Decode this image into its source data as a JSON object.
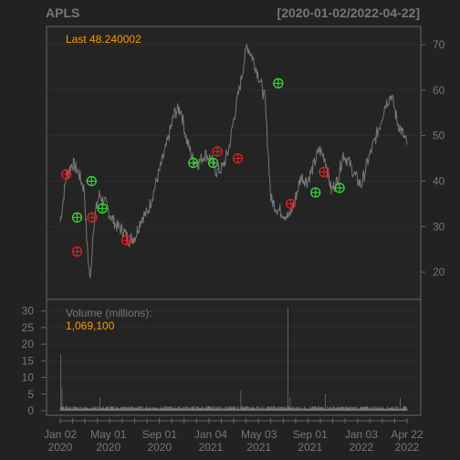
{
  "chart_data": {
    "type": "line",
    "title": "APLS",
    "date_range": "[2020-01-02/2022-04-22]",
    "price_panel": {
      "last_label": "Last 48.240002",
      "y_ticks": [
        20,
        30,
        40,
        50,
        60,
        70
      ],
      "ylim": [
        14,
        74
      ],
      "series": {
        "name": "",
        "x": [
          0,
          10,
          20,
          30,
          40,
          45,
          50,
          55,
          60,
          65,
          75,
          85,
          95,
          105,
          115,
          125,
          135,
          145,
          160,
          175,
          190,
          200,
          210,
          220,
          230,
          240,
          250,
          260,
          270,
          280,
          290,
          300,
          310,
          320,
          330,
          340,
          350,
          360,
          370,
          380,
          390,
          400,
          410,
          420,
          430,
          440,
          450,
          460,
          470,
          480,
          490,
          500,
          510,
          520,
          530,
          540,
          550,
          560,
          570,
          576
        ],
        "y": [
          31,
          41,
          44,
          42,
          38,
          25,
          18,
          30,
          34,
          37,
          35,
          32,
          30,
          29,
          27,
          28,
          32,
          33,
          40,
          47,
          55,
          56,
          49,
          45,
          44,
          46,
          45,
          42,
          43,
          47,
          55,
          62,
          70,
          67,
          63,
          58,
          36,
          34,
          33,
          32,
          36,
          41,
          40,
          43,
          47,
          45,
          38,
          40,
          46,
          44,
          41,
          39,
          44,
          48,
          52,
          57,
          59,
          53,
          50,
          48
        ]
      },
      "buy_markers": [
        {
          "x": 28,
          "y": 32
        },
        {
          "x": 52,
          "y": 40
        },
        {
          "x": 70,
          "y": 34
        },
        {
          "x": 221,
          "y": 44
        },
        {
          "x": 254,
          "y": 44
        },
        {
          "x": 362,
          "y": 61.5
        },
        {
          "x": 424,
          "y": 37.5
        },
        {
          "x": 464,
          "y": 38.5
        }
      ],
      "sell_markers": [
        {
          "x": 10,
          "y": 41.5
        },
        {
          "x": 28,
          "y": 24.5
        },
        {
          "x": 53,
          "y": 32
        },
        {
          "x": 110,
          "y": 27
        },
        {
          "x": 261,
          "y": 46.5
        },
        {
          "x": 295,
          "y": 45
        },
        {
          "x": 383,
          "y": 35
        },
        {
          "x": 438,
          "y": 42
        }
      ]
    },
    "volume_panel": {
      "label": "Volume (millions):",
      "last_value": "1,069,100",
      "y_ticks": [
        0,
        5,
        10,
        15,
        20,
        25,
        30
      ],
      "ylim": [
        0,
        31
      ],
      "spikes": [
        {
          "x": 1,
          "v": 17
        },
        {
          "x": 3,
          "v": 7
        },
        {
          "x": 66,
          "v": 4
        },
        {
          "x": 300,
          "v": 6
        },
        {
          "x": 378,
          "v": 31
        },
        {
          "x": 382,
          "v": 4
        },
        {
          "x": 440,
          "v": 5
        },
        {
          "x": 565,
          "v": 4
        }
      ],
      "baseline": 1
    },
    "x_axis": {
      "index_max": 576,
      "ticks": [
        {
          "x": 0,
          "label1": "Jan 02",
          "label2": "2020"
        },
        {
          "x": 80,
          "label1": "May 01",
          "label2": "2020"
        },
        {
          "x": 165,
          "label1": "Sep 01",
          "label2": "2020"
        },
        {
          "x": 250,
          "label1": "Jan 04",
          "label2": "2021"
        },
        {
          "x": 330,
          "label1": "May 03",
          "label2": "2021"
        },
        {
          "x": 415,
          "label1": "Sep 01",
          "label2": "2021"
        },
        {
          "x": 500,
          "label1": "Jan 03",
          "label2": "2022"
        },
        {
          "x": 576,
          "label1": "Apr 22",
          "label2": "2022"
        }
      ]
    },
    "colors": {
      "price_line": "#777777",
      "buy": "#33dd33",
      "sell": "#dd2222",
      "grid": "#2d2d2d",
      "frame": "#666666",
      "label_orange": "#ff9900"
    }
  }
}
